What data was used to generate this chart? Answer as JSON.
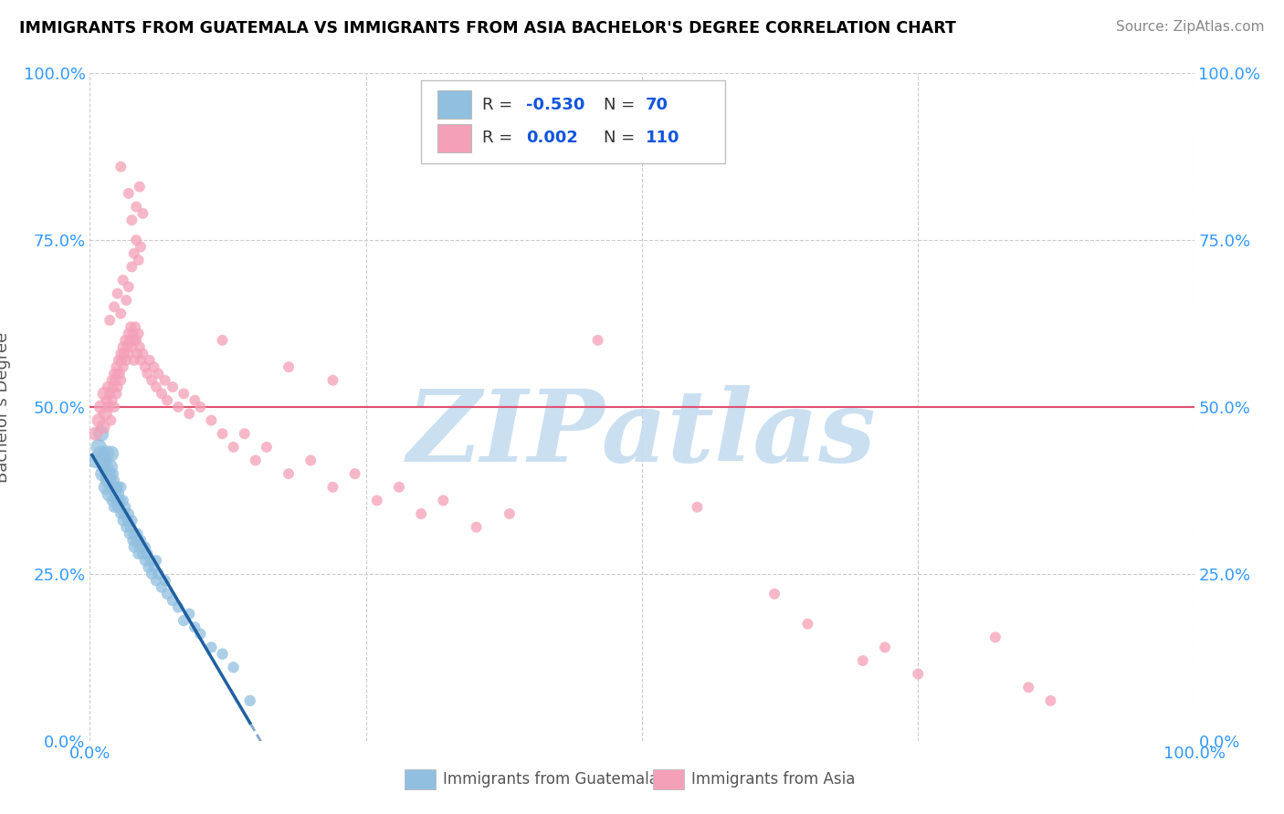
{
  "title": "IMMIGRANTS FROM GUATEMALA VS IMMIGRANTS FROM ASIA BACHELOR'S DEGREE CORRELATION CHART",
  "source_text": "Source: ZipAtlas.com",
  "ylabel": "Bachelor's Degree",
  "xlim": [
    0.0,
    1.0
  ],
  "ylim": [
    0.0,
    1.0
  ],
  "xtick_labels": [
    "0.0%",
    "100.0%"
  ],
  "ytick_labels": [
    "0.0%",
    "25.0%",
    "50.0%",
    "75.0%",
    "100.0%"
  ],
  "ytick_positions": [
    0.0,
    0.25,
    0.5,
    0.75,
    1.0
  ],
  "xtick_positions": [
    0.0,
    1.0
  ],
  "hline_y": 0.5,
  "hline_color": "#e05070",
  "watermark": "ZIPatlas",
  "watermark_color": "#c5ddf0",
  "color_blue": "#90bfe0",
  "color_pink": "#f4a0b8",
  "trendline_blue_color": "#2060a0",
  "blue_scatter": [
    [
      0.005,
      0.42
    ],
    [
      0.008,
      0.44
    ],
    [
      0.01,
      0.43
    ],
    [
      0.01,
      0.46
    ],
    [
      0.012,
      0.42
    ],
    [
      0.012,
      0.4
    ],
    [
      0.014,
      0.41
    ],
    [
      0.015,
      0.43
    ],
    [
      0.015,
      0.38
    ],
    [
      0.016,
      0.4
    ],
    [
      0.017,
      0.39
    ],
    [
      0.018,
      0.41
    ],
    [
      0.018,
      0.37
    ],
    [
      0.019,
      0.43
    ],
    [
      0.02,
      0.38
    ],
    [
      0.02,
      0.36
    ],
    [
      0.021,
      0.4
    ],
    [
      0.022,
      0.39
    ],
    [
      0.022,
      0.35
    ],
    [
      0.023,
      0.37
    ],
    [
      0.024,
      0.38
    ],
    [
      0.024,
      0.36
    ],
    [
      0.025,
      0.38
    ],
    [
      0.025,
      0.35
    ],
    [
      0.026,
      0.37
    ],
    [
      0.027,
      0.36
    ],
    [
      0.028,
      0.38
    ],
    [
      0.028,
      0.34
    ],
    [
      0.03,
      0.36
    ],
    [
      0.03,
      0.33
    ],
    [
      0.031,
      0.34
    ],
    [
      0.032,
      0.35
    ],
    [
      0.033,
      0.32
    ],
    [
      0.034,
      0.33
    ],
    [
      0.035,
      0.34
    ],
    [
      0.036,
      0.31
    ],
    [
      0.037,
      0.32
    ],
    [
      0.038,
      0.33
    ],
    [
      0.039,
      0.3
    ],
    [
      0.04,
      0.31
    ],
    [
      0.04,
      0.29
    ],
    [
      0.042,
      0.3
    ],
    [
      0.043,
      0.31
    ],
    [
      0.044,
      0.28
    ],
    [
      0.045,
      0.29
    ],
    [
      0.046,
      0.3
    ],
    [
      0.048,
      0.28
    ],
    [
      0.05,
      0.29
    ],
    [
      0.05,
      0.27
    ],
    [
      0.052,
      0.28
    ],
    [
      0.053,
      0.26
    ],
    [
      0.055,
      0.27
    ],
    [
      0.056,
      0.25
    ],
    [
      0.058,
      0.26
    ],
    [
      0.06,
      0.27
    ],
    [
      0.06,
      0.24
    ],
    [
      0.062,
      0.25
    ],
    [
      0.065,
      0.23
    ],
    [
      0.068,
      0.24
    ],
    [
      0.07,
      0.22
    ],
    [
      0.075,
      0.21
    ],
    [
      0.08,
      0.2
    ],
    [
      0.085,
      0.18
    ],
    [
      0.09,
      0.19
    ],
    [
      0.095,
      0.17
    ],
    [
      0.1,
      0.16
    ],
    [
      0.11,
      0.14
    ],
    [
      0.12,
      0.13
    ],
    [
      0.13,
      0.11
    ],
    [
      0.145,
      0.06
    ]
  ],
  "pink_scatter": [
    [
      0.005,
      0.46
    ],
    [
      0.008,
      0.48
    ],
    [
      0.01,
      0.5
    ],
    [
      0.012,
      0.47
    ],
    [
      0.013,
      0.52
    ],
    [
      0.014,
      0.49
    ],
    [
      0.015,
      0.51
    ],
    [
      0.016,
      0.53
    ],
    [
      0.017,
      0.5
    ],
    [
      0.018,
      0.52
    ],
    [
      0.019,
      0.48
    ],
    [
      0.02,
      0.54
    ],
    [
      0.02,
      0.51
    ],
    [
      0.021,
      0.53
    ],
    [
      0.022,
      0.55
    ],
    [
      0.022,
      0.5
    ],
    [
      0.023,
      0.54
    ],
    [
      0.024,
      0.52
    ],
    [
      0.024,
      0.56
    ],
    [
      0.025,
      0.55
    ],
    [
      0.025,
      0.53
    ],
    [
      0.026,
      0.57
    ],
    [
      0.027,
      0.55
    ],
    [
      0.028,
      0.58
    ],
    [
      0.028,
      0.54
    ],
    [
      0.029,
      0.57
    ],
    [
      0.03,
      0.59
    ],
    [
      0.03,
      0.56
    ],
    [
      0.031,
      0.58
    ],
    [
      0.032,
      0.6
    ],
    [
      0.033,
      0.57
    ],
    [
      0.034,
      0.59
    ],
    [
      0.035,
      0.61
    ],
    [
      0.035,
      0.58
    ],
    [
      0.036,
      0.6
    ],
    [
      0.037,
      0.62
    ],
    [
      0.038,
      0.59
    ],
    [
      0.039,
      0.61
    ],
    [
      0.04,
      0.6
    ],
    [
      0.04,
      0.57
    ],
    [
      0.041,
      0.62
    ],
    [
      0.042,
      0.6
    ],
    [
      0.043,
      0.58
    ],
    [
      0.044,
      0.61
    ],
    [
      0.045,
      0.59
    ],
    [
      0.046,
      0.57
    ],
    [
      0.048,
      0.58
    ],
    [
      0.05,
      0.56
    ],
    [
      0.052,
      0.55
    ],
    [
      0.054,
      0.57
    ],
    [
      0.056,
      0.54
    ],
    [
      0.058,
      0.56
    ],
    [
      0.06,
      0.53
    ],
    [
      0.062,
      0.55
    ],
    [
      0.065,
      0.52
    ],
    [
      0.068,
      0.54
    ],
    [
      0.07,
      0.51
    ],
    [
      0.075,
      0.53
    ],
    [
      0.08,
      0.5
    ],
    [
      0.085,
      0.52
    ],
    [
      0.09,
      0.49
    ],
    [
      0.095,
      0.51
    ],
    [
      0.1,
      0.5
    ],
    [
      0.018,
      0.63
    ],
    [
      0.022,
      0.65
    ],
    [
      0.025,
      0.67
    ],
    [
      0.028,
      0.64
    ],
    [
      0.03,
      0.69
    ],
    [
      0.033,
      0.66
    ],
    [
      0.035,
      0.68
    ],
    [
      0.038,
      0.71
    ],
    [
      0.04,
      0.73
    ],
    [
      0.042,
      0.75
    ],
    [
      0.044,
      0.72
    ],
    [
      0.046,
      0.74
    ],
    [
      0.028,
      0.86
    ],
    [
      0.035,
      0.82
    ],
    [
      0.038,
      0.78
    ],
    [
      0.042,
      0.8
    ],
    [
      0.045,
      0.83
    ],
    [
      0.048,
      0.79
    ],
    [
      0.11,
      0.48
    ],
    [
      0.12,
      0.46
    ],
    [
      0.13,
      0.44
    ],
    [
      0.14,
      0.46
    ],
    [
      0.15,
      0.42
    ],
    [
      0.16,
      0.44
    ],
    [
      0.18,
      0.4
    ],
    [
      0.2,
      0.42
    ],
    [
      0.22,
      0.38
    ],
    [
      0.24,
      0.4
    ],
    [
      0.26,
      0.36
    ],
    [
      0.28,
      0.38
    ],
    [
      0.3,
      0.34
    ],
    [
      0.32,
      0.36
    ],
    [
      0.35,
      0.32
    ],
    [
      0.38,
      0.34
    ],
    [
      0.12,
      0.6
    ],
    [
      0.18,
      0.56
    ],
    [
      0.22,
      0.54
    ],
    [
      0.46,
      0.6
    ],
    [
      0.55,
      0.35
    ],
    [
      0.62,
      0.22
    ],
    [
      0.65,
      0.175
    ],
    [
      0.7,
      0.12
    ],
    [
      0.72,
      0.14
    ],
    [
      0.75,
      0.1
    ],
    [
      0.82,
      0.155
    ],
    [
      0.85,
      0.08
    ],
    [
      0.87,
      0.06
    ]
  ]
}
